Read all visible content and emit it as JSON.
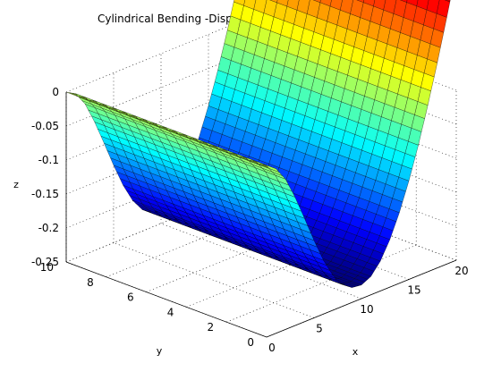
{
  "chart_data": {
    "type": "surface",
    "title": "Cylindrical Bending -Displacement of a plate With CLPT",
    "xlabel": "x",
    "ylabel": "y",
    "zlabel": "z",
    "xlim": [
      0,
      20
    ],
    "ylim": [
      0,
      10
    ],
    "zlim": [
      -0.25,
      0
    ],
    "x_ticks": [
      "0",
      "5",
      "10",
      "15",
      "20"
    ],
    "y_ticks": [
      "0",
      "2",
      "4",
      "6",
      "8",
      "10"
    ],
    "z_ticks": [
      "0",
      "-0.05",
      "-0.1",
      "-0.15",
      "-0.2",
      "-0.25"
    ],
    "grid": true,
    "colormap": "jet",
    "surface": {
      "description_function": "z depends on x only; constant along y",
      "x": [
        0,
        1,
        2,
        3,
        4,
        5,
        6,
        7,
        8,
        9,
        10,
        11,
        12,
        13,
        14,
        15,
        16,
        17,
        18,
        19,
        20
      ],
      "z": [
        0,
        -0.008,
        -0.029,
        -0.061,
        -0.098,
        -0.136,
        -0.171,
        -0.199,
        -0.218,
        -0.228,
        -0.23,
        -0.223,
        -0.206,
        -0.18,
        -0.146,
        -0.105,
        -0.058,
        -0.005,
        0.052,
        0.113,
        0.176
      ]
    }
  }
}
